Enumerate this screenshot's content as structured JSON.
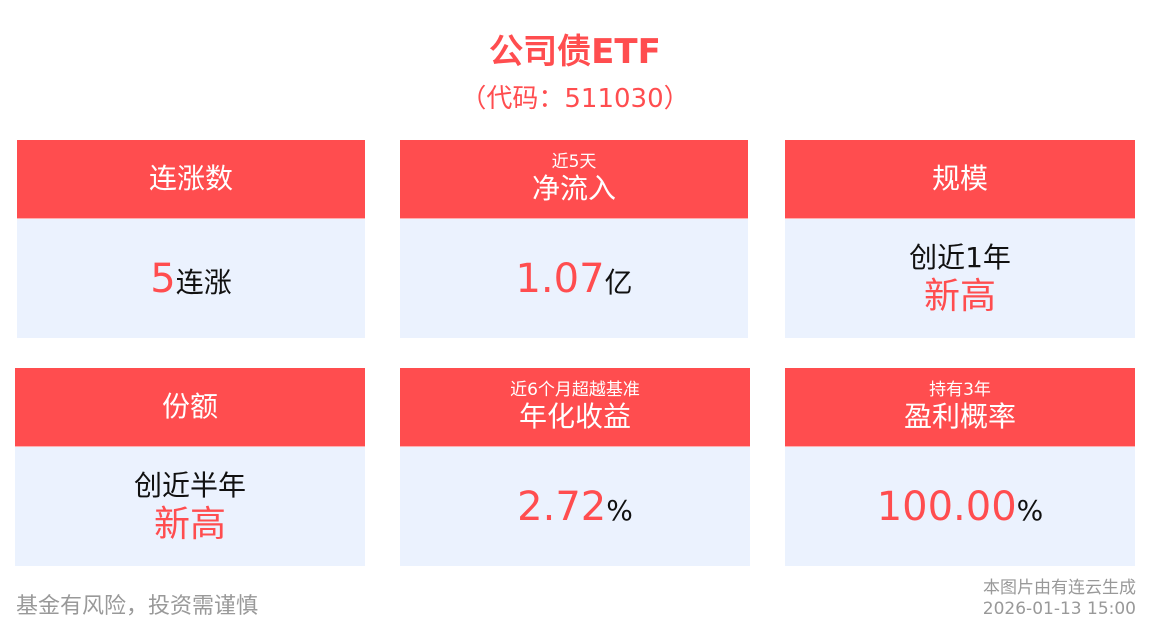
{
  "header": {
    "title": "公司债ETF",
    "code": "（代码：511030）"
  },
  "cards": [
    {
      "sub": "",
      "title": "连涨数",
      "value": "5",
      "unit": "连涨"
    },
    {
      "sub": "近5天",
      "title": "净流入",
      "value": "1.07",
      "unit": "亿"
    },
    {
      "sub": "",
      "title": "规模",
      "line1": "创近1年",
      "line2": "新高"
    },
    {
      "sub": "",
      "title": "份额",
      "line1": "创近半年",
      "line2": "新高"
    },
    {
      "sub": "近6个月超越基准",
      "title": "年化收益",
      "value": "2.72",
      "unit": "%"
    },
    {
      "sub": "持有3年",
      "title": "盈利概率",
      "value": "100.00",
      "unit": "%"
    }
  ],
  "footer": {
    "disclaimer": "基金有风险，投资需谨慎",
    "source": "本图片由有连云生成",
    "timestamp": "2026-01-13 15:00"
  },
  "colors": {
    "accent": "#ff4d4f",
    "card_bg": "#ebf2fe"
  }
}
